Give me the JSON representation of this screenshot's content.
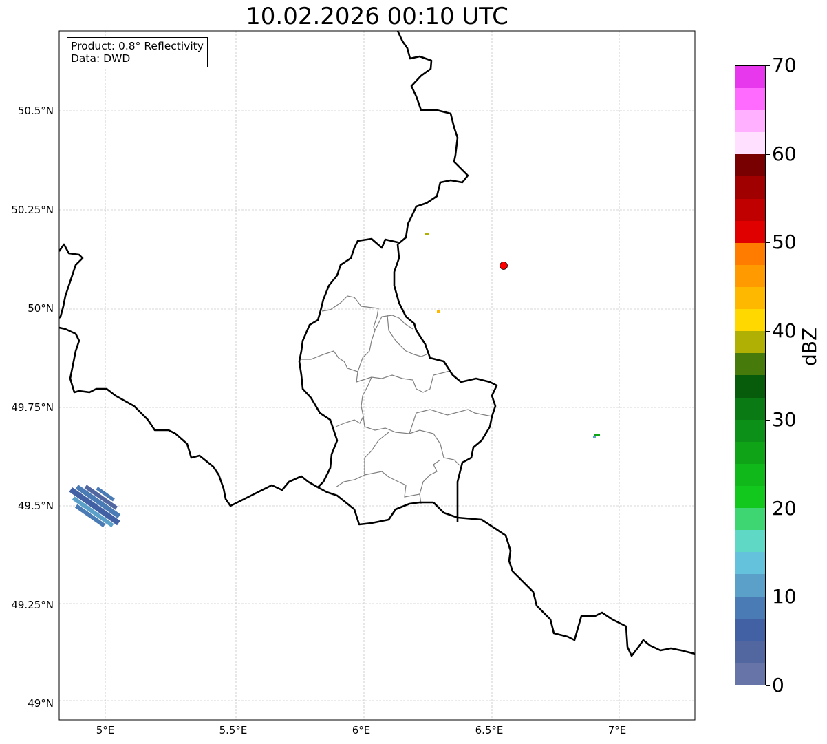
{
  "title": "10.02.2026 00:10 UTC",
  "info": {
    "product": "Product: 0.8° Reflectivity",
    "data": "Data: DWD"
  },
  "axes": {
    "lat_labels": [
      "50.5°N",
      "50.25°N",
      "50°N",
      "49.75°N",
      "49.5°N",
      "49.25°N",
      "49°N"
    ],
    "lat_values": [
      50.5,
      50.25,
      50.0,
      49.75,
      49.5,
      49.25,
      49.0
    ],
    "lon_labels": [
      "5°E",
      "5.5°E",
      "6°E",
      "6.5°E",
      "7°E"
    ],
    "lon_values": [
      5.0,
      5.5,
      6.0,
      6.5,
      7.0
    ]
  },
  "marker": {
    "name": "radar site",
    "color": "#ff0000"
  },
  "colorbar": {
    "label": "dBZ",
    "min": 0,
    "max": 70,
    "step": 2.5,
    "tick_labels": [
      "0",
      "10",
      "20",
      "30",
      "40",
      "50",
      "60",
      "70"
    ],
    "colors": [
      "#6674a8",
      "#5266a0",
      "#4260a4",
      "#4a7bb4",
      "#5aa0c8",
      "#64c2dc",
      "#5fd8c6",
      "#3dd672",
      "#12c81c",
      "#10b81a",
      "#0fa418",
      "#0c9018",
      "#0a7a14",
      "#075c0c",
      "#467a0a",
      "#b0b004",
      "#ffd800",
      "#ffb800",
      "#ff9a00",
      "#ff7c00",
      "#e00000",
      "#c00000",
      "#a00000",
      "#780000",
      "#ffe0ff",
      "#ffb0ff",
      "#ff6aff",
      "#e838ee"
    ]
  }
}
